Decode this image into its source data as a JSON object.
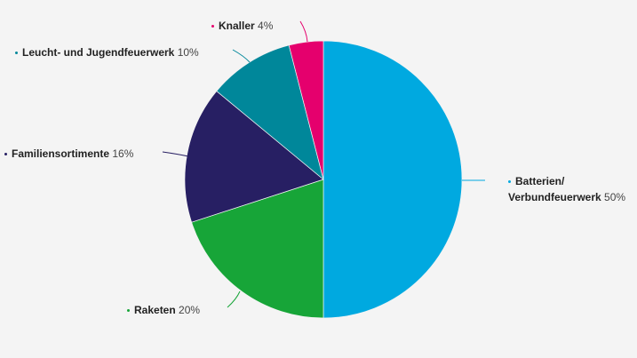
{
  "chart_data": {
    "type": "pie",
    "start": "top",
    "direction": "clockwise",
    "slices": [
      {
        "label": "Batterien/",
        "label2": "Verbundfeuerwerk",
        "value": 50,
        "value_label": "50%",
        "color": "#00a9e0"
      },
      {
        "label": "Raketen",
        "value": 20,
        "value_label": "20%",
        "color": "#17a538"
      },
      {
        "label": "Familiensortimente",
        "value": 16,
        "value_label": "16%",
        "color": "#271f63"
      },
      {
        "label": "Leucht- und Jugendfeuerwerk",
        "value": 10,
        "value_label": "10%",
        "color": "#00879a"
      },
      {
        "label": "Knaller",
        "value": 4,
        "value_label": "4%",
        "color": "#e5006d"
      }
    ]
  }
}
